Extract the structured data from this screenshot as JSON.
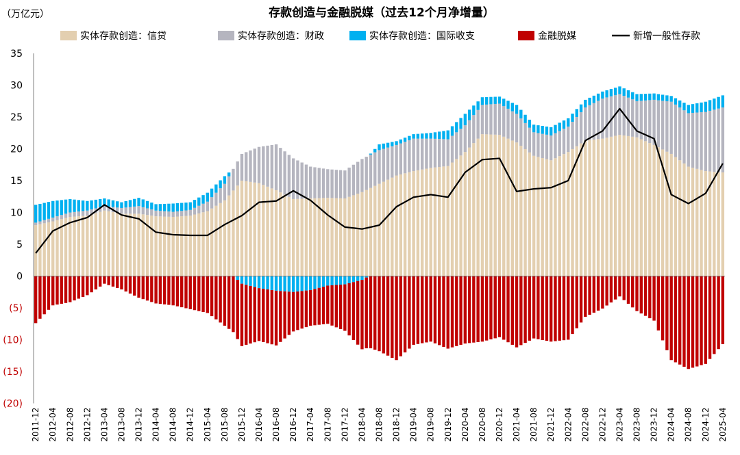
{
  "chart_data": {
    "type": "bar",
    "stacked": true,
    "title": "存款创造与金融脱媒（过去12个月净增量）",
    "unit_label": "（万亿元）",
    "ylim": [
      -20,
      35
    ],
    "y_ticks": [
      35,
      30,
      25,
      20,
      15,
      10,
      5,
      0,
      -5,
      -10,
      -15,
      -20
    ],
    "y_tick_labels": [
      "35",
      "30",
      "25",
      "20",
      "15",
      "10",
      "5",
      "0",
      "(5)",
      "(10)",
      "(15)",
      "(20)"
    ],
    "legend_position": "top",
    "grid": false,
    "x_tick_labels": [
      "2011-12",
      "2012-04",
      "2012-08",
      "2012-12",
      "2013-04",
      "2013-08",
      "2013-12",
      "2014-04",
      "2014-08",
      "2014-12",
      "2015-04",
      "2015-08",
      "2015-12",
      "2016-04",
      "2016-08",
      "2016-12",
      "2017-04",
      "2017-08",
      "2017-12",
      "2018-04",
      "2018-08",
      "2018-12",
      "2019-04",
      "2019-08",
      "2019-12",
      "2020-04",
      "2020-08",
      "2020-12",
      "2021-04",
      "2021-08",
      "2021-12",
      "2022-04",
      "2022-08",
      "2022-12",
      "2023-04",
      "2023-08",
      "2023-12",
      "2024-04",
      "2024-08",
      "2024-12",
      "2025-04"
    ],
    "x_keys": [
      "2011-12",
      "2012-04",
      "2012-08",
      "2012-12",
      "2013-04",
      "2013-08",
      "2013-12",
      "2014-04",
      "2014-08",
      "2014-12",
      "2015-04",
      "2015-08",
      "2015-12",
      "2016-04",
      "2016-08",
      "2016-12",
      "2017-04",
      "2017-08",
      "2017-12",
      "2018-04",
      "2018-08",
      "2018-12",
      "2019-04",
      "2019-08",
      "2019-12",
      "2020-04",
      "2020-08",
      "2020-12",
      "2021-04",
      "2021-08",
      "2021-12",
      "2022-04",
      "2022-08",
      "2022-12",
      "2023-04",
      "2023-08",
      "2023-12",
      "2024-04",
      "2024-08",
      "2024-12",
      "2025-04"
    ],
    "series": [
      {
        "name": "实体存款创造：信贷",
        "color": "#e3cfb0",
        "key_values": [
          8.0,
          8.6,
          9.3,
          9.5,
          10.3,
          9.8,
          9.8,
          9.4,
          9.3,
          9.5,
          10.2,
          11.9,
          15.0,
          14.6,
          13.5,
          12.1,
          12.2,
          12.3,
          12.2,
          13.2,
          14.5,
          15.8,
          16.5,
          17.0,
          17.3,
          19.5,
          22.3,
          22.2,
          21.0,
          18.9,
          18.2,
          19.5,
          21.3,
          21.6,
          22.2,
          21.8,
          20.6,
          19.2,
          17.2,
          16.5,
          16.3
        ]
      },
      {
        "name": "实体存款创造：财政",
        "color": "#b5b5bf",
        "key_values": [
          0.4,
          0.6,
          0.7,
          0.8,
          0.7,
          0.9,
          1.2,
          0.9,
          0.8,
          0.9,
          1.5,
          2.6,
          4.2,
          5.7,
          7.2,
          6.4,
          5.0,
          4.5,
          4.4,
          5.2,
          5.3,
          4.8,
          5.1,
          4.6,
          4.2,
          4.2,
          4.6,
          4.9,
          4.5,
          3.7,
          3.9,
          4.0,
          5.2,
          6.3,
          6.4,
          5.7,
          7.1,
          8.2,
          8.4,
          9.3,
          10.2
        ]
      },
      {
        "name": "实体存款创造：国际收支",
        "color": "#00b0f0",
        "key_values": [
          2.8,
          2.6,
          2.1,
          1.5,
          1.2,
          0.9,
          1.3,
          1.0,
          1.3,
          1.2,
          1.4,
          1.2,
          -1.2,
          -1.9,
          -2.3,
          -2.5,
          -2.2,
          -1.5,
          -1.3,
          -0.6,
          0.9,
          0.6,
          0.7,
          0.9,
          1.4,
          1.8,
          1.2,
          1.1,
          1.4,
          1.2,
          1.3,
          1.3,
          1.2,
          1.1,
          1.2,
          1.1,
          1.0,
          0.9,
          1.3,
          1.6,
          1.9
        ]
      },
      {
        "name": "金融脱媒",
        "color": "#c00000",
        "key_values": [
          -7.4,
          -4.6,
          -4.1,
          -3.0,
          -1.2,
          -2.1,
          -3.4,
          -4.3,
          -4.6,
          -5.2,
          -5.8,
          -7.8,
          -9.8,
          -8.3,
          -8.6,
          -6.2,
          -5.6,
          -6.0,
          -7.3,
          -10.9,
          -11.8,
          -13.2,
          -10.8,
          -10.3,
          -11.4,
          -10.6,
          -10.3,
          -9.6,
          -11.2,
          -9.8,
          -10.3,
          -10.0,
          -6.4,
          -5.1,
          -3.2,
          -5.5,
          -7.0,
          -13.2,
          -14.6,
          -13.8,
          -10.7
        ]
      },
      {
        "name": "新增一般性存款",
        "color": "#000000",
        "type": "line",
        "key_values": [
          3.6,
          7.1,
          8.4,
          9.2,
          11.2,
          9.6,
          9.0,
          6.9,
          6.5,
          6.4,
          6.4,
          8.1,
          9.5,
          11.6,
          11.8,
          13.4,
          11.9,
          9.6,
          7.7,
          7.4,
          8.0,
          10.9,
          12.4,
          12.8,
          12.4,
          16.3,
          18.3,
          18.5,
          13.3,
          13.7,
          13.9,
          15.0,
          21.3,
          22.8,
          26.3,
          22.8,
          21.6,
          12.8,
          11.4,
          13.0,
          17.7
        ]
      }
    ]
  }
}
